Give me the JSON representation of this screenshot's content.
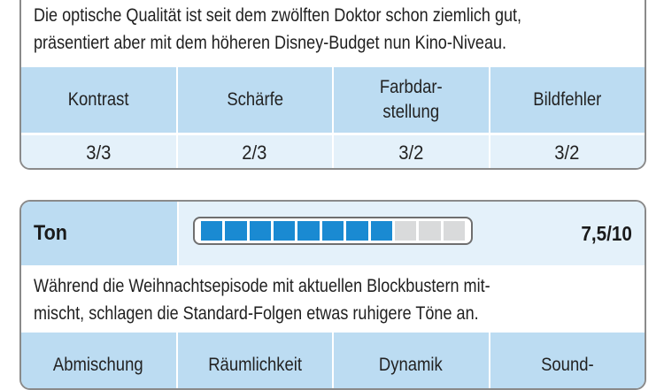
{
  "bild": {
    "description_lines": [
      "Die optische Qualität ist seit dem zwölften Doktor schon ziemlich gut,",
      "präsentiert aber mit dem höheren Disney-Budget nun Kino-Niveau."
    ],
    "ratings": [
      {
        "label": "Kontrast",
        "value": "3/3"
      },
      {
        "label": "Schärfe",
        "value": "2/3"
      },
      {
        "label": "Farbdar-\nstellung",
        "value": "3/2"
      },
      {
        "label": "Bildfehler",
        "value": "3/2"
      }
    ]
  },
  "ton": {
    "title": "Ton",
    "score": "7,5/10",
    "meter": {
      "filled": 8,
      "total": 11
    },
    "accent_color": "#1a8ad2",
    "description_lines": [
      "Während die Weihnachtsepisode mit aktuellen Blockbustern mit-",
      "mischt, schlagen die Standard-Folgen etwas ruhigere Töne an."
    ],
    "ratings": [
      {
        "label": "Abmischung",
        "value": ""
      },
      {
        "label": "Räumlichkeit",
        "value": ""
      },
      {
        "label": "Dynamik",
        "value": ""
      },
      {
        "label": "Sound-",
        "value": ""
      }
    ]
  }
}
